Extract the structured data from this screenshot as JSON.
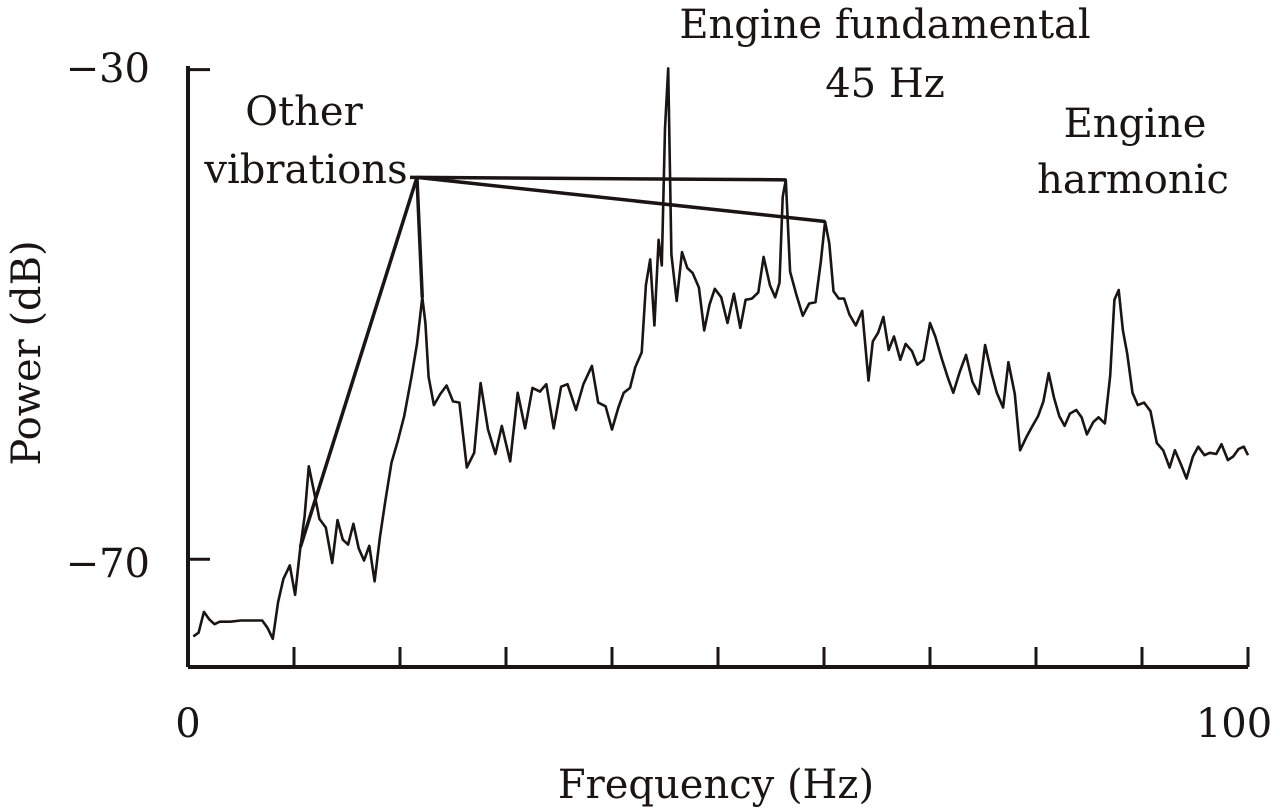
{
  "chart_data": {
    "type": "line",
    "xlabel": "Frequency (Hz)",
    "ylabel": "Power (dB)",
    "xlim": [
      0,
      100
    ],
    "ylim": [
      -78.8,
      -29.7
    ],
    "x_tick_labels": [
      "0",
      "100"
    ],
    "y_tick_labels": [
      "−30",
      "−70"
    ],
    "x_ticks": [
      0,
      10,
      20,
      30,
      40,
      50,
      60,
      70,
      80,
      90,
      100
    ],
    "y_ticks": [
      -30,
      -70
    ],
    "grid": false,
    "series": [
      {
        "color": "#1a1414",
        "points": [
          [
            0.5,
            -76.3
          ],
          [
            1.0,
            -76.0
          ],
          [
            1.5,
            -74.3
          ],
          [
            2.0,
            -74.9
          ],
          [
            2.5,
            -75.3
          ],
          [
            3.0,
            -75.1
          ],
          [
            4.0,
            -75.1
          ],
          [
            5.0,
            -75.0
          ],
          [
            6.0,
            -75.0
          ],
          [
            7.0,
            -75.0
          ],
          [
            7.5,
            -75.6
          ],
          [
            8.0,
            -76.5
          ],
          [
            8.5,
            -73.5
          ],
          [
            9.0,
            -71.6
          ],
          [
            9.6,
            -70.5
          ],
          [
            10.1,
            -72.9
          ],
          [
            10.6,
            -69.0
          ],
          [
            11.0,
            -66.5
          ],
          [
            11.4,
            -62.4
          ],
          [
            11.9,
            -64.5
          ],
          [
            12.4,
            -66.7
          ],
          [
            13.0,
            -67.4
          ],
          [
            13.6,
            -70.3
          ],
          [
            14.1,
            -66.8
          ],
          [
            14.6,
            -68.4
          ],
          [
            15.1,
            -68.8
          ],
          [
            15.6,
            -67.1
          ],
          [
            16.1,
            -69.1
          ],
          [
            16.6,
            -70.1
          ],
          [
            17.1,
            -68.9
          ],
          [
            17.6,
            -71.8
          ],
          [
            18.1,
            -68.2
          ],
          [
            18.6,
            -65.3
          ],
          [
            19.2,
            -62.1
          ],
          [
            19.8,
            -60.3
          ],
          [
            20.4,
            -58.3
          ],
          [
            21.1,
            -55.0
          ],
          [
            21.6,
            -52.4
          ],
          [
            22.1,
            -48.6
          ],
          [
            22.4,
            -50.7
          ],
          [
            22.7,
            -55.1
          ],
          [
            23.2,
            -57.4
          ],
          [
            23.8,
            -56.5
          ],
          [
            24.4,
            -55.8
          ],
          [
            25.0,
            -57.1
          ],
          [
            25.6,
            -57.2
          ],
          [
            26.3,
            -62.5
          ],
          [
            27.0,
            -61.3
          ],
          [
            27.6,
            -55.6
          ],
          [
            28.3,
            -59.4
          ],
          [
            29.0,
            -61.4
          ],
          [
            29.6,
            -59.1
          ],
          [
            30.4,
            -62.0
          ],
          [
            31.1,
            -56.4
          ],
          [
            31.8,
            -59.3
          ],
          [
            32.5,
            -56.0
          ],
          [
            33.2,
            -56.3
          ],
          [
            33.8,
            -55.7
          ],
          [
            34.5,
            -59.3
          ],
          [
            35.2,
            -55.9
          ],
          [
            35.8,
            -55.7
          ],
          [
            36.6,
            -57.8
          ],
          [
            37.3,
            -55.7
          ],
          [
            38.1,
            -54.2
          ],
          [
            38.7,
            -57.2
          ],
          [
            39.4,
            -57.5
          ],
          [
            40.0,
            -59.4
          ],
          [
            40.6,
            -57.6
          ],
          [
            41.1,
            -56.4
          ],
          [
            41.7,
            -56.0
          ],
          [
            42.2,
            -54.3
          ],
          [
            42.8,
            -53.1
          ],
          [
            43.2,
            -47.6
          ],
          [
            43.6,
            -45.5
          ],
          [
            44.0,
            -50.9
          ],
          [
            44.4,
            -43.9
          ],
          [
            44.7,
            -46.0
          ],
          [
            45.0,
            -34.8
          ],
          [
            45.3,
            -29.9
          ],
          [
            45.6,
            -45.1
          ],
          [
            46.1,
            -48.9
          ],
          [
            46.6,
            -44.9
          ],
          [
            47.1,
            -46.2
          ],
          [
            47.6,
            -46.6
          ],
          [
            48.2,
            -47.8
          ],
          [
            48.7,
            -51.3
          ],
          [
            49.2,
            -49.2
          ],
          [
            49.7,
            -47.9
          ],
          [
            50.3,
            -48.6
          ],
          [
            50.9,
            -50.7
          ],
          [
            51.5,
            -48.3
          ],
          [
            52.1,
            -51.1
          ],
          [
            52.6,
            -48.8
          ],
          [
            53.2,
            -48.7
          ],
          [
            53.8,
            -48.2
          ],
          [
            54.3,
            -45.3
          ],
          [
            54.9,
            -47.6
          ],
          [
            55.4,
            -48.6
          ],
          [
            55.8,
            -47.4
          ],
          [
            56.1,
            -40.4
          ],
          [
            56.4,
            -39.0
          ],
          [
            56.8,
            -46.5
          ],
          [
            57.4,
            -48.4
          ],
          [
            58.0,
            -50.1
          ],
          [
            58.6,
            -49.1
          ],
          [
            59.2,
            -49.0
          ],
          [
            59.7,
            -45.7
          ],
          [
            60.1,
            -42.4
          ],
          [
            60.5,
            -44.2
          ],
          [
            60.9,
            -48.1
          ],
          [
            61.4,
            -48.7
          ],
          [
            61.9,
            -48.7
          ],
          [
            62.4,
            -50.0
          ],
          [
            63.0,
            -50.9
          ],
          [
            63.6,
            -49.7
          ],
          [
            64.2,
            -55.4
          ],
          [
            64.6,
            -52.2
          ],
          [
            65.1,
            -51.5
          ],
          [
            65.6,
            -50.2
          ],
          [
            66.1,
            -52.9
          ],
          [
            66.6,
            -51.8
          ],
          [
            67.2,
            -53.7
          ],
          [
            67.7,
            -52.4
          ],
          [
            68.3,
            -53.0
          ],
          [
            68.8,
            -54.1
          ],
          [
            69.4,
            -53.7
          ],
          [
            70.0,
            -50.7
          ],
          [
            70.5,
            -51.8
          ],
          [
            71.1,
            -53.6
          ],
          [
            71.7,
            -55.2
          ],
          [
            72.2,
            -56.4
          ],
          [
            72.8,
            -54.7
          ],
          [
            73.4,
            -53.3
          ],
          [
            74.0,
            -55.5
          ],
          [
            74.6,
            -56.5
          ],
          [
            75.2,
            -52.5
          ],
          [
            75.8,
            -54.8
          ],
          [
            76.3,
            -56.4
          ],
          [
            76.9,
            -57.6
          ],
          [
            77.4,
            -53.9
          ],
          [
            78.0,
            -56.5
          ],
          [
            78.5,
            -61.1
          ],
          [
            79.1,
            -60.0
          ],
          [
            79.6,
            -59.2
          ],
          [
            80.2,
            -58.3
          ],
          [
            80.7,
            -57.1
          ],
          [
            81.2,
            -54.8
          ],
          [
            81.7,
            -56.8
          ],
          [
            82.2,
            -58.3
          ],
          [
            82.7,
            -59.1
          ],
          [
            83.2,
            -58.1
          ],
          [
            83.8,
            -57.8
          ],
          [
            84.3,
            -58.4
          ],
          [
            84.8,
            -59.8
          ],
          [
            85.4,
            -58.8
          ],
          [
            85.9,
            -58.4
          ],
          [
            86.5,
            -58.9
          ],
          [
            87.0,
            -55.0
          ],
          [
            87.4,
            -48.8
          ],
          [
            87.8,
            -48.0
          ],
          [
            88.2,
            -51.3
          ],
          [
            88.6,
            -53.2
          ],
          [
            89.1,
            -56.4
          ],
          [
            89.6,
            -57.4
          ],
          [
            90.2,
            -57.2
          ],
          [
            90.8,
            -57.9
          ],
          [
            91.4,
            -60.5
          ],
          [
            92.0,
            -61.1
          ],
          [
            92.6,
            -62.5
          ],
          [
            93.1,
            -61.1
          ],
          [
            93.7,
            -62.3
          ],
          [
            94.2,
            -63.4
          ],
          [
            94.8,
            -61.6
          ],
          [
            95.3,
            -60.8
          ],
          [
            95.9,
            -61.5
          ],
          [
            96.4,
            -61.3
          ],
          [
            97.0,
            -61.4
          ],
          [
            97.5,
            -60.6
          ],
          [
            98.1,
            -61.9
          ],
          [
            98.6,
            -61.6
          ],
          [
            99.1,
            -61.0
          ],
          [
            99.6,
            -60.8
          ],
          [
            100.0,
            -61.5
          ]
        ]
      }
    ],
    "annotations": [
      {
        "id": "other",
        "lines": [
          "Other",
          "vibrations"
        ],
        "targets": [
          [
            10.6,
            -69.0
          ],
          [
            22.1,
            -48.6
          ],
          [
            56.4,
            -39.0
          ],
          [
            60.1,
            -42.4
          ]
        ],
        "hub": [
          21.6,
          -38.8
        ]
      },
      {
        "id": "fundamental",
        "lines": [
          "Engine fundamental",
          "45 Hz"
        ]
      },
      {
        "id": "harmonic",
        "lines": [
          "Engine",
          "harmonic"
        ]
      }
    ]
  }
}
